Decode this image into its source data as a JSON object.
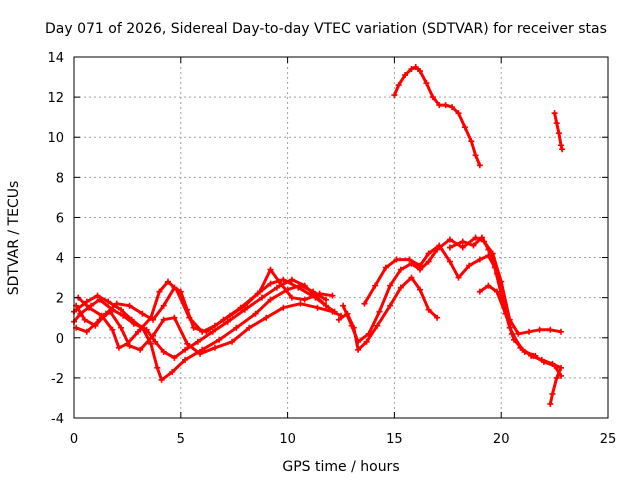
{
  "chart_data": {
    "type": "scatter",
    "title": "Day 071 of 2026, Sidereal Day-to-day VTEC variation (SDTVAR) for receiver stas",
    "xlabel": "GPS time / hours",
    "ylabel": "SDTVAR / TECUs",
    "xlim": [
      0,
      25
    ],
    "ylim": [
      -4,
      14
    ],
    "xticks": [
      0,
      5,
      10,
      15,
      20,
      25
    ],
    "yticks": [
      -4,
      -2,
      0,
      2,
      4,
      6,
      8,
      10,
      12,
      14
    ],
    "grid": true,
    "legend": "none",
    "marker": "plus",
    "color": "#ff0000",
    "series": [
      {
        "name": "track-1",
        "points": [
          [
            0.0,
            0.8
          ],
          [
            0.3,
            1.2
          ],
          [
            0.8,
            1.6
          ],
          [
            1.2,
            1.9
          ],
          [
            1.8,
            1.4
          ],
          [
            2.3,
            1.1
          ],
          [
            2.8,
            0.7
          ],
          [
            3.4,
            0.4
          ],
          [
            3.8,
            -0.2
          ],
          [
            4.2,
            -0.7
          ],
          [
            4.7,
            -1.0
          ],
          [
            5.2,
            -0.6
          ],
          [
            5.8,
            -0.2
          ],
          [
            6.5,
            0.3
          ],
          [
            7.2,
            0.8
          ],
          [
            8.0,
            1.4
          ],
          [
            8.8,
            2.0
          ],
          [
            9.5,
            2.5
          ],
          [
            10.2,
            2.9
          ],
          [
            10.8,
            2.6
          ],
          [
            11.3,
            2.1
          ],
          [
            11.8,
            1.6
          ],
          [
            12.2,
            1.3
          ]
        ]
      },
      {
        "name": "track-2",
        "points": [
          [
            0.0,
            1.3
          ],
          [
            0.6,
            1.8
          ],
          [
            1.1,
            2.1
          ],
          [
            1.6,
            1.8
          ],
          [
            2.2,
            1.4
          ],
          [
            2.7,
            0.9
          ],
          [
            3.2,
            0.5
          ],
          [
            3.6,
            -0.3
          ],
          [
            3.9,
            -1.5
          ],
          [
            4.1,
            -2.1
          ],
          [
            4.6,
            -1.7
          ],
          [
            5.2,
            -1.1
          ],
          [
            6.0,
            -0.6
          ],
          [
            6.8,
            -0.1
          ],
          [
            7.6,
            0.5
          ],
          [
            8.5,
            1.2
          ],
          [
            9.2,
            1.9
          ],
          [
            10.0,
            2.4
          ],
          [
            10.6,
            2.6
          ],
          [
            11.2,
            2.3
          ],
          [
            11.8,
            1.9
          ]
        ]
      },
      {
        "name": "track-3",
        "points": [
          [
            0.1,
            1.6
          ],
          [
            0.5,
            0.9
          ],
          [
            1.0,
            0.6
          ],
          [
            1.5,
            1.2
          ],
          [
            2.0,
            1.7
          ],
          [
            2.6,
            1.6
          ],
          [
            3.2,
            1.2
          ],
          [
            3.7,
            0.9
          ],
          [
            4.2,
            1.6
          ],
          [
            4.7,
            2.5
          ],
          [
            5.0,
            2.3
          ],
          [
            5.3,
            1.4
          ],
          [
            5.6,
            0.5
          ],
          [
            6.2,
            0.3
          ],
          [
            7.0,
            0.9
          ],
          [
            7.8,
            1.5
          ],
          [
            8.6,
            2.2
          ],
          [
            9.2,
            2.7
          ],
          [
            9.8,
            2.9
          ],
          [
            10.5,
            2.5
          ],
          [
            11.3,
            2.0
          ],
          [
            11.8,
            1.6
          ]
        ]
      },
      {
        "name": "track-4",
        "points": [
          [
            0.2,
            2.0
          ],
          [
            0.7,
            1.5
          ],
          [
            1.3,
            1.1
          ],
          [
            1.8,
            0.4
          ],
          [
            2.1,
            -0.5
          ],
          [
            2.5,
            -0.3
          ],
          [
            3.0,
            0.3
          ],
          [
            3.6,
            1.0
          ],
          [
            4.0,
            2.3
          ],
          [
            4.4,
            2.8
          ],
          [
            4.8,
            2.4
          ],
          [
            5.4,
            1.0
          ],
          [
            6.0,
            0.3
          ],
          [
            6.6,
            0.6
          ],
          [
            7.3,
            1.1
          ],
          [
            8.0,
            1.6
          ],
          [
            8.7,
            2.3
          ],
          [
            9.2,
            3.4
          ],
          [
            9.6,
            2.8
          ],
          [
            10.2,
            2.0
          ],
          [
            10.8,
            1.9
          ],
          [
            11.5,
            2.2
          ],
          [
            12.1,
            2.1
          ]
        ]
      },
      {
        "name": "track-5",
        "points": [
          [
            0.1,
            0.5
          ],
          [
            0.6,
            0.3
          ],
          [
            1.2,
            0.9
          ],
          [
            1.7,
            1.3
          ],
          [
            2.2,
            0.5
          ],
          [
            2.6,
            -0.4
          ],
          [
            3.1,
            -0.6
          ],
          [
            3.7,
            0.1
          ],
          [
            4.2,
            0.9
          ],
          [
            4.7,
            1.0
          ],
          [
            5.3,
            -0.3
          ],
          [
            5.9,
            -0.8
          ],
          [
            6.6,
            -0.5
          ],
          [
            7.4,
            -0.2
          ],
          [
            8.2,
            0.5
          ],
          [
            9.0,
            1.0
          ],
          [
            9.8,
            1.5
          ],
          [
            10.6,
            1.7
          ],
          [
            11.4,
            1.5
          ],
          [
            12.1,
            1.3
          ],
          [
            12.5,
            1.1
          ]
        ]
      },
      {
        "name": "track-6",
        "points": [
          [
            12.4,
            0.9
          ],
          [
            12.8,
            1.2
          ],
          [
            13.1,
            0.5
          ],
          [
            13.3,
            -0.6
          ],
          [
            13.7,
            -0.2
          ],
          [
            14.2,
            0.6
          ],
          [
            14.8,
            1.6
          ],
          [
            15.3,
            2.5
          ],
          [
            15.8,
            3.0
          ],
          [
            16.2,
            2.4
          ],
          [
            16.6,
            1.4
          ],
          [
            17.0,
            1.0
          ]
        ]
      },
      {
        "name": "track-7",
        "points": [
          [
            12.6,
            1.6
          ],
          [
            13.0,
            0.6
          ],
          [
            13.3,
            -0.2
          ],
          [
            13.8,
            0.2
          ],
          [
            14.3,
            1.3
          ],
          [
            14.8,
            2.6
          ],
          [
            15.3,
            3.4
          ],
          [
            15.8,
            3.7
          ],
          [
            16.2,
            3.4
          ],
          [
            16.6,
            3.8
          ],
          [
            17.0,
            4.4
          ],
          [
            17.6,
            4.9
          ],
          [
            18.2,
            4.5
          ],
          [
            18.8,
            5.0
          ],
          [
            19.2,
            4.8
          ],
          [
            19.6,
            4.2
          ],
          [
            20.0,
            2.8
          ],
          [
            20.4,
            0.9
          ],
          [
            20.8,
            0.2
          ],
          [
            21.3,
            0.3
          ],
          [
            21.8,
            0.4
          ],
          [
            22.3,
            0.4
          ],
          [
            22.8,
            0.3
          ]
        ]
      },
      {
        "name": "track-8",
        "points": [
          [
            13.6,
            1.7
          ],
          [
            14.1,
            2.6
          ],
          [
            14.6,
            3.5
          ],
          [
            15.1,
            3.9
          ],
          [
            15.7,
            3.9
          ],
          [
            16.2,
            3.6
          ],
          [
            16.6,
            4.2
          ],
          [
            17.1,
            4.6
          ],
          [
            17.6,
            3.8
          ],
          [
            18.0,
            3.0
          ],
          [
            18.5,
            3.6
          ],
          [
            19.0,
            3.9
          ],
          [
            19.4,
            4.1
          ],
          [
            19.7,
            3.5
          ],
          [
            20.0,
            2.2
          ],
          [
            20.4,
            0.5
          ],
          [
            20.9,
            -0.5
          ],
          [
            21.4,
            -0.9
          ],
          [
            21.9,
            -1.1
          ],
          [
            22.4,
            -1.3
          ],
          [
            22.8,
            -1.5
          ],
          [
            22.6,
            -2.0
          ],
          [
            22.4,
            -2.8
          ],
          [
            22.3,
            -3.3
          ]
        ]
      },
      {
        "name": "track-9",
        "points": [
          [
            17.6,
            4.5
          ],
          [
            18.2,
            4.8
          ],
          [
            18.7,
            4.6
          ],
          [
            19.1,
            5.0
          ],
          [
            19.4,
            4.4
          ],
          [
            19.8,
            3.2
          ],
          [
            20.1,
            1.8
          ],
          [
            20.5,
            0.2
          ],
          [
            21.0,
            -0.6
          ],
          [
            21.5,
            -0.9
          ],
          [
            22.0,
            -1.2
          ],
          [
            22.5,
            -1.4
          ],
          [
            22.8,
            -1.9
          ]
        ]
      },
      {
        "name": "track-10",
        "points": [
          [
            19.0,
            2.3
          ],
          [
            19.4,
            2.6
          ],
          [
            19.8,
            2.3
          ],
          [
            20.2,
            1.2
          ],
          [
            20.6,
            -0.1
          ],
          [
            21.1,
            -0.7
          ],
          [
            21.6,
            -0.9
          ]
        ]
      },
      {
        "name": "track-11",
        "points": [
          [
            15.0,
            12.1
          ],
          [
            15.2,
            12.6
          ],
          [
            15.5,
            13.1
          ],
          [
            15.8,
            13.4
          ],
          [
            16.0,
            13.5
          ],
          [
            16.2,
            13.3
          ],
          [
            16.5,
            12.7
          ],
          [
            16.8,
            12.0
          ],
          [
            17.1,
            11.6
          ],
          [
            17.4,
            11.6
          ],
          [
            17.7,
            11.5
          ],
          [
            18.0,
            11.2
          ],
          [
            18.3,
            10.5
          ],
          [
            18.6,
            9.8
          ],
          [
            18.8,
            9.1
          ],
          [
            19.0,
            8.6
          ]
        ]
      },
      {
        "name": "track-12",
        "points": [
          [
            22.5,
            11.2
          ],
          [
            22.6,
            10.7
          ],
          [
            22.7,
            10.2
          ],
          [
            22.8,
            9.6
          ],
          [
            22.85,
            9.4
          ]
        ]
      }
    ]
  }
}
